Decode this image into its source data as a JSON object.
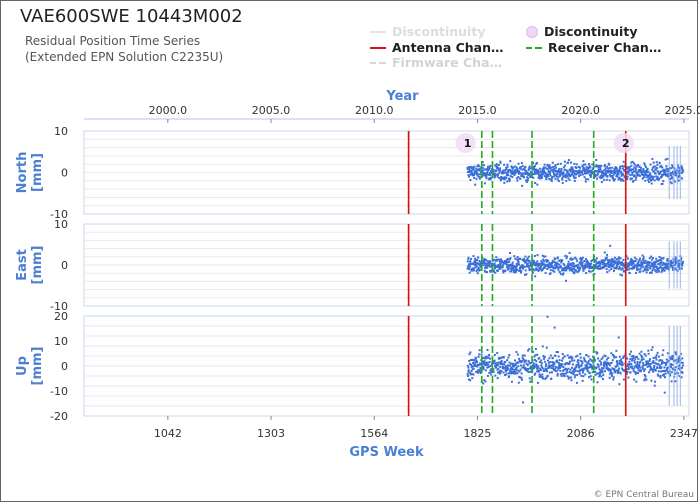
{
  "header": {
    "title": "VAE600SWE 10443M002",
    "subtitle_line1": "Residual Position Time Series",
    "subtitle_line2": "(Extended EPN Solution C2235U)"
  },
  "legend": [
    {
      "label": "Discontinuity",
      "style": "faded-line",
      "color": "#dddddd"
    },
    {
      "label": "Discontinuity",
      "style": "circle",
      "color": "#e8c8f0"
    },
    {
      "label": "Antenna Chan…",
      "style": "line",
      "color": "#e01010"
    },
    {
      "label": "Receiver Chan…",
      "style": "dashed",
      "color": "#22aa22"
    },
    {
      "label": "Firmware Cha…",
      "style": "faded-dashed",
      "color": "#cccccc"
    }
  ],
  "footer": "© EPN Central Bureau",
  "chart_data": {
    "type": "scatter",
    "top_axis": {
      "label": "Year",
      "ticks": [
        "2000.0",
        "2005.0",
        "2010.0",
        "2015.0",
        "2020.0",
        "2025.0"
      ],
      "tick_values_gps_week": [
        1042,
        1303,
        1564,
        1825,
        2086,
        2347
      ]
    },
    "bottom_axis": {
      "label": "GPS Week",
      "ticks": [
        "1042",
        "1303",
        "1564",
        "1825",
        "2086",
        "2347"
      ],
      "range": [
        830,
        2360
      ]
    },
    "panels": [
      {
        "name": "North",
        "ylabel": "North\n[mm]",
        "ylim": [
          -10,
          10
        ],
        "yticks": [
          "10",
          "0",
          "-10"
        ],
        "spread": 2.0
      },
      {
        "name": "East",
        "ylabel": "East\n[mm]",
        "ylim": [
          -10,
          10
        ],
        "yticks": [
          "10",
          "0",
          "-10"
        ],
        "spread": 1.8
      },
      {
        "name": "Up",
        "ylabel": "Up\n[mm]",
        "ylim": [
          -20,
          20
        ],
        "yticks": [
          "20",
          "10",
          "0",
          "-10",
          "-20"
        ],
        "spread": 5.0
      }
    ],
    "data_range_gps_week": [
      1800,
      2345
    ],
    "antenna_changes_gps_week": [
      1651,
      2200
    ],
    "receiver_changes_gps_week": [
      1651,
      1836,
      1863,
      1963,
      2119
    ],
    "discontinuities": [
      {
        "label": "1",
        "gps_week": 1800
      },
      {
        "label": "2",
        "gps_week": 2200
      }
    ],
    "grid": true
  }
}
